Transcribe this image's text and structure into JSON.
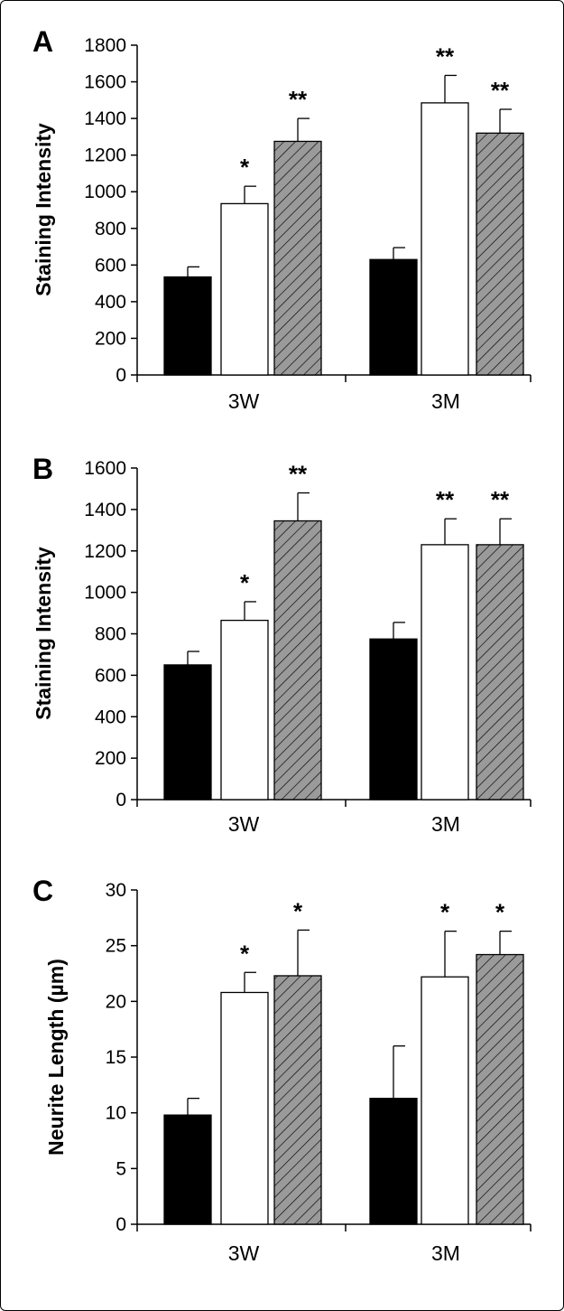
{
  "colors": {
    "series_1_fill": "#000000",
    "series_2_fill": "#ffffff",
    "series_3_fill": "#9a9a9a",
    "series_3_hatch": "#000000"
  },
  "chart_data": [
    {
      "panel": "A",
      "type": "bar",
      "ylabel": "Staining Intensity",
      "ylim": [
        0,
        1800
      ],
      "yticks": [
        0,
        200,
        400,
        600,
        800,
        1000,
        1200,
        1400,
        1600,
        1800
      ],
      "categories": [
        "3W",
        "3M"
      ],
      "series": [
        {
          "values": [
            535,
            630
          ],
          "errors": [
            55,
            65
          ],
          "fill": "solid-black",
          "significance": [
            "",
            ""
          ]
        },
        {
          "values": [
            935,
            1485
          ],
          "errors": [
            95,
            150
          ],
          "fill": "white",
          "significance": [
            "*",
            "**"
          ]
        },
        {
          "values": [
            1275,
            1320
          ],
          "errors": [
            125,
            130
          ],
          "fill": "hatched-gray",
          "significance": [
            "**",
            "**"
          ]
        }
      ],
      "grid": false,
      "legend": "none"
    },
    {
      "panel": "B",
      "type": "bar",
      "ylabel": "Staining Intensity",
      "ylim": [
        0,
        1600
      ],
      "yticks": [
        0,
        200,
        400,
        600,
        800,
        1000,
        1200,
        1400,
        1600
      ],
      "categories": [
        "3W",
        "3M"
      ],
      "series": [
        {
          "values": [
            650,
            775
          ],
          "errors": [
            65,
            80
          ],
          "fill": "solid-black",
          "significance": [
            "",
            ""
          ]
        },
        {
          "values": [
            865,
            1230
          ],
          "errors": [
            90,
            125
          ],
          "fill": "white",
          "significance": [
            "*",
            "**"
          ]
        },
        {
          "values": [
            1345,
            1230
          ],
          "errors": [
            135,
            125
          ],
          "fill": "hatched-gray",
          "significance": [
            "**",
            "**"
          ]
        }
      ],
      "grid": false,
      "legend": "none"
    },
    {
      "panel": "C",
      "type": "bar",
      "ylabel": "Neurite Length (µm)",
      "ylim": [
        0,
        30
      ],
      "yticks": [
        0,
        5,
        10,
        15,
        20,
        25,
        30
      ],
      "categories": [
        "3W",
        "3M"
      ],
      "series": [
        {
          "values": [
            9.8,
            11.3
          ],
          "errors": [
            1.5,
            4.7
          ],
          "fill": "solid-black",
          "significance": [
            "",
            ""
          ]
        },
        {
          "values": [
            20.8,
            22.2
          ],
          "errors": [
            1.8,
            4.1
          ],
          "fill": "white",
          "significance": [
            "*",
            "*"
          ]
        },
        {
          "values": [
            22.3,
            24.2
          ],
          "errors": [
            4.1,
            2.1
          ],
          "fill": "hatched-gray",
          "significance": [
            "*",
            "*"
          ]
        }
      ],
      "grid": false,
      "legend": "none"
    }
  ]
}
